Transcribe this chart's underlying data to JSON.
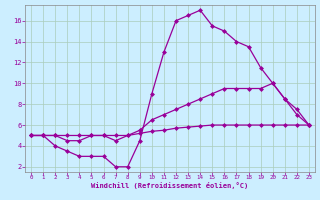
{
  "xlabel": "Windchill (Refroidissement éolien,°C)",
  "line_color": "#990099",
  "bg_color": "#cceeff",
  "grid_color": "#aaccbb",
  "xlim": [
    -0.5,
    23.5
  ],
  "ylim": [
    1.5,
    17.5
  ],
  "xticks": [
    0,
    1,
    2,
    3,
    4,
    5,
    6,
    7,
    8,
    9,
    10,
    11,
    12,
    13,
    14,
    15,
    16,
    17,
    18,
    19,
    20,
    21,
    22,
    23
  ],
  "yticks": [
    2,
    4,
    6,
    8,
    10,
    12,
    14,
    16
  ],
  "line1_x": [
    0,
    1,
    2,
    3,
    4,
    5,
    6,
    7,
    8,
    9,
    10,
    11,
    12,
    13,
    14,
    15,
    16,
    17,
    18,
    19,
    20,
    21,
    22,
    23
  ],
  "line1_y": [
    5,
    5,
    4,
    3.5,
    3,
    3,
    3,
    2,
    2,
    4.5,
    9,
    13,
    16,
    16.5,
    17,
    15.5,
    15,
    14,
    13.5,
    11.5,
    10,
    8.5,
    7,
    6
  ],
  "line2_x": [
    0,
    1,
    2,
    3,
    4,
    5,
    6,
    7,
    8,
    9,
    10,
    11,
    12,
    13,
    14,
    15,
    16,
    17,
    18,
    19,
    20,
    21,
    22,
    23
  ],
  "line2_y": [
    5,
    5,
    5,
    4.5,
    4.5,
    5,
    5,
    4.5,
    5,
    5.5,
    6.5,
    7,
    7.5,
    8,
    8.5,
    9,
    9.5,
    9.5,
    9.5,
    9.5,
    10,
    8.5,
    7.5,
    6
  ],
  "line3_x": [
    0,
    1,
    2,
    3,
    4,
    5,
    6,
    7,
    8,
    9,
    10,
    11,
    12,
    13,
    14,
    15,
    16,
    17,
    18,
    19,
    20,
    21,
    22,
    23
  ],
  "line3_y": [
    5,
    5,
    5,
    5,
    5,
    5,
    5,
    5,
    5,
    5.2,
    5.4,
    5.5,
    5.7,
    5.8,
    5.9,
    6,
    6,
    6,
    6,
    6,
    6,
    6,
    6,
    6
  ]
}
